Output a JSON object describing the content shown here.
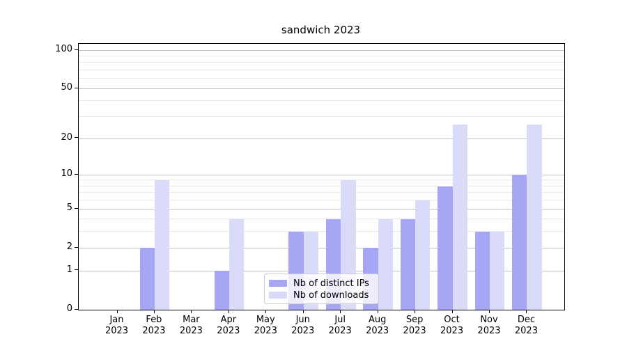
{
  "title": "sandwich 2023",
  "legend": {
    "items": [
      {
        "label": "Nb of distinct IPs",
        "color": "#a6a6f5"
      },
      {
        "label": "Nb of downloads",
        "color": "#dadaf9"
      }
    ]
  },
  "chart_data": {
    "type": "bar",
    "title": "sandwich 2023",
    "categories": [
      {
        "month": "Jan",
        "year": "2023"
      },
      {
        "month": "Feb",
        "year": "2023"
      },
      {
        "month": "Mar",
        "year": "2023"
      },
      {
        "month": "Apr",
        "year": "2023"
      },
      {
        "month": "May",
        "year": "2023"
      },
      {
        "month": "Jun",
        "year": "2023"
      },
      {
        "month": "Jul",
        "year": "2023"
      },
      {
        "month": "Aug",
        "year": "2023"
      },
      {
        "month": "Sep",
        "year": "2023"
      },
      {
        "month": "Oct",
        "year": "2023"
      },
      {
        "month": "Nov",
        "year": "2023"
      },
      {
        "month": "Dec",
        "year": "2023"
      }
    ],
    "series": [
      {
        "name": "Nb of distinct IPs",
        "color": "#a6a6f5",
        "values": [
          0,
          2,
          0,
          1,
          0,
          3,
          4,
          2,
          4,
          8,
          3,
          10
        ]
      },
      {
        "name": "Nb of downloads",
        "color": "#dadaf9",
        "values": [
          0,
          9,
          0,
          4,
          0,
          3,
          9,
          4,
          6,
          26,
          3,
          26
        ]
      }
    ],
    "yscale": "log1p",
    "ylim": [
      0,
      112
    ],
    "yticks": [
      0,
      1,
      2,
      5,
      10,
      20,
      50,
      100
    ],
    "minor_gridlines": [
      3,
      4,
      6,
      7,
      8,
      9,
      30,
      40,
      60,
      70,
      80,
      90
    ],
    "grid": "horizontal",
    "legend_position": "lower center (inside plot)",
    "xlabel": "",
    "ylabel": ""
  }
}
